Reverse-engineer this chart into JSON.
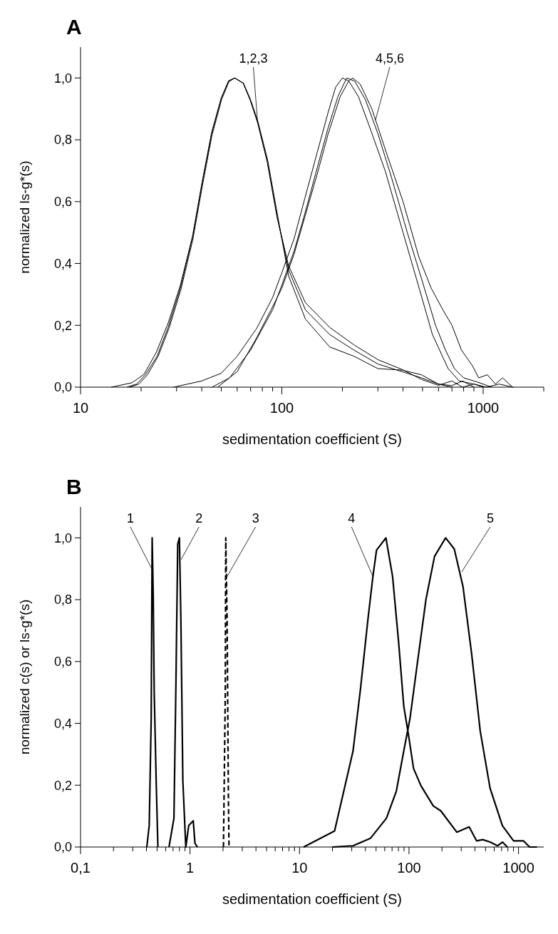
{
  "chart_data": [
    {
      "type": "line",
      "title": "A",
      "xlabel": "sedimentation coefficient  (S)",
      "ylabel": "normalized ls-g*(s)",
      "log": "x",
      "xlim": [
        10,
        2000
      ],
      "ylim": [
        0,
        1.1
      ],
      "xticks": [
        {
          "value": 10,
          "label": "10"
        },
        {
          "value": 20,
          "label": null
        },
        {
          "value": 30,
          "label": null
        },
        {
          "value": 40,
          "label": null
        },
        {
          "value": 50,
          "label": null
        },
        {
          "value": 60,
          "label": null
        },
        {
          "value": 70,
          "label": null
        },
        {
          "value": 80,
          "label": null
        },
        {
          "value": 90,
          "label": null
        },
        {
          "value": 100,
          "label": "100"
        },
        {
          "value": 200,
          "label": null
        },
        {
          "value": 300,
          "label": null
        },
        {
          "value": 400,
          "label": null
        },
        {
          "value": 500,
          "label": null
        },
        {
          "value": 600,
          "label": null
        },
        {
          "value": 700,
          "label": null
        },
        {
          "value": 800,
          "label": null
        },
        {
          "value": 900,
          "label": null
        },
        {
          "value": 1000,
          "label": "1000"
        },
        {
          "value": 2000,
          "label": null
        }
      ],
      "yticks": [
        {
          "value": 0,
          "label": "0,0"
        },
        {
          "value": 0.2,
          "label": "0,2"
        },
        {
          "value": 0.4,
          "label": "0,4"
        },
        {
          "value": 0.6,
          "label": "0,6"
        },
        {
          "value": 0.8,
          "label": "0,8"
        },
        {
          "value": 1,
          "label": "1,0"
        }
      ],
      "grid": false,
      "series": [
        {
          "color": "#000000",
          "x": [
            14.2,
            18,
            20.7,
            23.8,
            27.3,
            31.3,
            36,
            40.2,
            44.8,
            50,
            54.4,
            58.3,
            64.3,
            69.7,
            75.8,
            84.7,
            94.6,
            108,
            131,
            173,
            228,
            300,
            396,
            494,
            599,
            700,
            790,
            900,
            1040,
            1200,
            1410
          ],
          "values": [
            0,
            0.014,
            0.042,
            0.113,
            0.209,
            0.329,
            0.488,
            0.664,
            0.824,
            0.935,
            0.991,
            1.0,
            0.983,
            0.928,
            0.856,
            0.728,
            0.552,
            0.393,
            0.273,
            0.193,
            0.137,
            0.089,
            0.057,
            0.025,
            0.006,
            0.02,
            0,
            0.01,
            0,
            0.01,
            0
          ]
        },
        {
          "color": "#000000",
          "x": [
            17,
            19,
            21,
            24,
            27.3,
            31.3,
            36,
            40.2,
            44.8,
            50,
            54.4,
            58.3,
            64.3,
            69.7,
            75.8,
            84.7,
            94.6,
            108,
            131,
            173,
            228,
            300,
            396,
            494,
            599,
            700
          ],
          "values": [
            0,
            0.01,
            0.04,
            0.1,
            0.195,
            0.32,
            0.485,
            0.66,
            0.82,
            0.935,
            0.99,
            1.0,
            0.983,
            0.928,
            0.856,
            0.728,
            0.552,
            0.38,
            0.25,
            0.17,
            0.12,
            0.075,
            0.05,
            0.03,
            0.01,
            0
          ]
        },
        {
          "color": "#000000",
          "x": [
            17.5,
            19.5,
            21.5,
            24.3,
            27.5,
            31.5,
            36.2,
            40.4,
            45,
            50.2,
            54.6,
            58.5,
            64.5,
            69.9,
            76,
            85,
            95,
            108,
            131,
            173,
            228,
            300,
            396,
            494,
            599,
            700,
            790,
            900
          ],
          "values": [
            0,
            0.01,
            0.04,
            0.1,
            0.19,
            0.315,
            0.48,
            0.655,
            0.815,
            0.93,
            0.988,
            1.0,
            0.983,
            0.93,
            0.86,
            0.735,
            0.56,
            0.36,
            0.22,
            0.13,
            0.1,
            0.06,
            0.055,
            0.04,
            0.01,
            0.005,
            0.02,
            0
          ]
        },
        {
          "color": "#000000",
          "x": [
            29,
            40,
            50,
            60,
            75,
            90,
            100,
            115,
            130,
            150,
            170,
            185,
            200,
            215,
            240,
            270,
            326,
            400,
            481,
            560,
            670,
            760,
            900,
            1000
          ],
          "values": [
            0,
            0.02,
            0.045,
            0.1,
            0.19,
            0.29,
            0.37,
            0.48,
            0.61,
            0.76,
            0.89,
            0.97,
            1.0,
            0.99,
            0.94,
            0.85,
            0.7,
            0.5,
            0.32,
            0.17,
            0.06,
            0.02,
            0.01,
            0
          ]
        },
        {
          "color": "#000000",
          "x": [
            45,
            55,
            70,
            90,
            100,
            115,
            130,
            150,
            170,
            190,
            210,
            230,
            260,
            300,
            350,
            420,
            500,
            580,
            650,
            720,
            800,
            900,
            1000,
            1100
          ],
          "values": [
            0,
            0.03,
            0.12,
            0.25,
            0.33,
            0.44,
            0.56,
            0.71,
            0.84,
            0.94,
            1.0,
            0.99,
            0.93,
            0.82,
            0.68,
            0.5,
            0.34,
            0.2,
            0.12,
            0.06,
            0.03,
            0.02,
            0.01,
            0
          ]
        },
        {
          "color": "#000000",
          "x": [
            48,
            60,
            75,
            90,
            100,
            115,
            130,
            150,
            170,
            195,
            215,
            225,
            245,
            280,
            330,
            400,
            480,
            552,
            631,
            700,
            780,
            883,
            950,
            1050,
            1150,
            1250,
            1400
          ],
          "values": [
            0,
            0.05,
            0.16,
            0.26,
            0.32,
            0.43,
            0.55,
            0.69,
            0.82,
            0.94,
            0.99,
            1.0,
            0.98,
            0.9,
            0.76,
            0.6,
            0.42,
            0.32,
            0.25,
            0.2,
            0.12,
            0.07,
            0.03,
            0.04,
            0.01,
            0.03,
            0
          ]
        }
      ],
      "annotations": [
        {
          "text": "1,2,3",
          "x": 75.8,
          "y": 0.856
        },
        {
          "text": "4,5,6",
          "x": 292,
          "y": 0.864
        }
      ]
    },
    {
      "type": "line",
      "title": "B",
      "xlabel": "sedimentation coefficient  (S)",
      "ylabel": "normalized c(s) or ls-g*(s)",
      "log": "x",
      "xlim": [
        0.1,
        1700
      ],
      "ylim": [
        0,
        1.1
      ],
      "xticks": [
        {
          "value": 0.1,
          "label": "0,1"
        },
        {
          "value": 0.2,
          "label": null
        },
        {
          "value": 0.3,
          "label": null
        },
        {
          "value": 0.4,
          "label": null
        },
        {
          "value": 0.5,
          "label": null
        },
        {
          "value": 0.6,
          "label": null
        },
        {
          "value": 0.7,
          "label": null
        },
        {
          "value": 0.8,
          "label": null
        },
        {
          "value": 0.9,
          "label": null
        },
        {
          "value": 1,
          "label": "1"
        },
        {
          "value": 2,
          "label": null
        },
        {
          "value": 3,
          "label": null
        },
        {
          "value": 4,
          "label": null
        },
        {
          "value": 5,
          "label": null
        },
        {
          "value": 6,
          "label": null
        },
        {
          "value": 7,
          "label": null
        },
        {
          "value": 8,
          "label": null
        },
        {
          "value": 9,
          "label": null
        },
        {
          "value": 10,
          "label": "10"
        },
        {
          "value": 20,
          "label": null
        },
        {
          "value": 30,
          "label": null
        },
        {
          "value": 40,
          "label": null
        },
        {
          "value": 50,
          "label": null
        },
        {
          "value": 60,
          "label": null
        },
        {
          "value": 70,
          "label": null
        },
        {
          "value": 80,
          "label": null
        },
        {
          "value": 90,
          "label": null
        },
        {
          "value": 100,
          "label": "100"
        },
        {
          "value": 200,
          "label": null
        },
        {
          "value": 300,
          "label": null
        },
        {
          "value": 400,
          "label": null
        },
        {
          "value": 500,
          "label": null
        },
        {
          "value": 600,
          "label": null
        },
        {
          "value": 700,
          "label": null
        },
        {
          "value": 800,
          "label": null
        },
        {
          "value": 900,
          "label": null
        },
        {
          "value": 1000,
          "label": "1000"
        }
      ],
      "yticks": [
        {
          "value": 0,
          "label": "0,0"
        },
        {
          "value": 0.2,
          "label": "0,2"
        },
        {
          "value": 0.4,
          "label": "0,4"
        },
        {
          "value": 0.6,
          "label": "0,6"
        },
        {
          "value": 0.8,
          "label": "0,8"
        },
        {
          "value": 1,
          "label": "1,0"
        }
      ],
      "grid": false,
      "series": [
        {
          "color": "#000000",
          "x": [
            0.403,
            0.424,
            0.442,
            0.451,
            0.461,
            0.471,
            0.491,
            0.509
          ],
          "values": [
            0,
            0.07,
            0.415,
            1.0,
            0.82,
            0.5,
            0.21,
            0
          ]
        },
        {
          "color": "#000000",
          "x": [
            0.643,
            0.713,
            0.744,
            0.772,
            0.8,
            0.825,
            0.86,
            0.915,
            0.974,
            1.07,
            1.11,
            1.17
          ],
          "values": [
            0,
            0.093,
            0.536,
            0.98,
            1.0,
            0.738,
            0.214,
            0,
            0.07,
            0.085,
            0.012,
            0
          ]
        },
        {
          "color": "#000000",
          "line_style": "dashed",
          "x": [
            2.02,
            2.1,
            2.12,
            2.18,
            2.24,
            2.27
          ],
          "values": [
            0,
            0.5,
            1.0,
            0.74,
            0.17,
            0
          ]
        },
        {
          "color": "#000000",
          "x": [
            10.9,
            20.9,
            30.8,
            36,
            42.2,
            46.8,
            50.5,
            61.5,
            70.8,
            80.6,
            89.5,
            99.3,
            110,
            128.6,
            166.6,
            195,
            273,
            354,
            414,
            471,
            550,
            643,
            713,
            791
          ],
          "values": [
            0,
            0.052,
            0.31,
            0.51,
            0.738,
            0.875,
            0.96,
            1.0,
            0.875,
            0.657,
            0.456,
            0.359,
            0.254,
            0.198,
            0.133,
            0.117,
            0.048,
            0.065,
            0.02,
            0.024,
            0.016,
            0.004,
            0.016,
            0
          ]
        },
        {
          "color": "#000000",
          "x": [
            19.9,
            30.8,
            44.4,
            62.2,
            76.6,
            89.5,
            102,
            119,
            143,
            171,
            216,
            259,
            311,
            373,
            447,
            550,
            713,
            901,
            1109,
            1263,
            1476
          ],
          "values": [
            0,
            0.004,
            0.028,
            0.093,
            0.181,
            0.31,
            0.415,
            0.593,
            0.802,
            0.94,
            1.0,
            0.964,
            0.843,
            0.625,
            0.375,
            0.19,
            0.069,
            0.02,
            0.02,
            0,
            0
          ]
        }
      ],
      "annotations": [
        {
          "text": "1",
          "x": 0.447,
          "y": 0.9
        },
        {
          "text": "2",
          "x": 0.83,
          "y": 0.93
        },
        {
          "text": "3",
          "x": 2.18,
          "y": 0.875
        },
        {
          "text": "4",
          "x": 46.8,
          "y": 0.875
        },
        {
          "text": "5",
          "x": 303,
          "y": 0.89
        }
      ]
    }
  ]
}
